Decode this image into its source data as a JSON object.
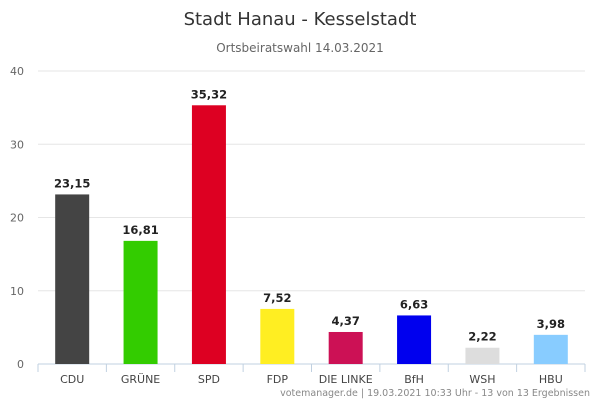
{
  "chart_data": {
    "type": "bar",
    "title": "Stadt Hanau - Kesselstadt",
    "subtitle": "Ortsbeiratswahl 14.03.2021",
    "categories": [
      "CDU",
      "GRÜNE",
      "SPD",
      "FDP",
      "DIE LINKE",
      "BfH",
      "WSH",
      "HBU"
    ],
    "values": [
      23.15,
      16.81,
      35.32,
      7.52,
      4.37,
      6.63,
      2.22,
      3.98
    ],
    "data_labels": [
      "23,15",
      "16,81",
      "35,32",
      "7,52",
      "4,37",
      "6,63",
      "2,22",
      "3,98"
    ],
    "colors": [
      "#444444",
      "#33cc00",
      "#dd0022",
      "#ffee22",
      "#cc1155",
      "#0000ee",
      "#dddddd",
      "#88ccff"
    ],
    "yticks": [
      "0",
      "10",
      "20",
      "30",
      "40"
    ],
    "ylim": [
      0,
      40
    ],
    "grid": true,
    "legend": "none",
    "credits": "votemanager.de | 19.03.2021 10:33 Uhr - 13 von 13 Ergebnissen"
  }
}
